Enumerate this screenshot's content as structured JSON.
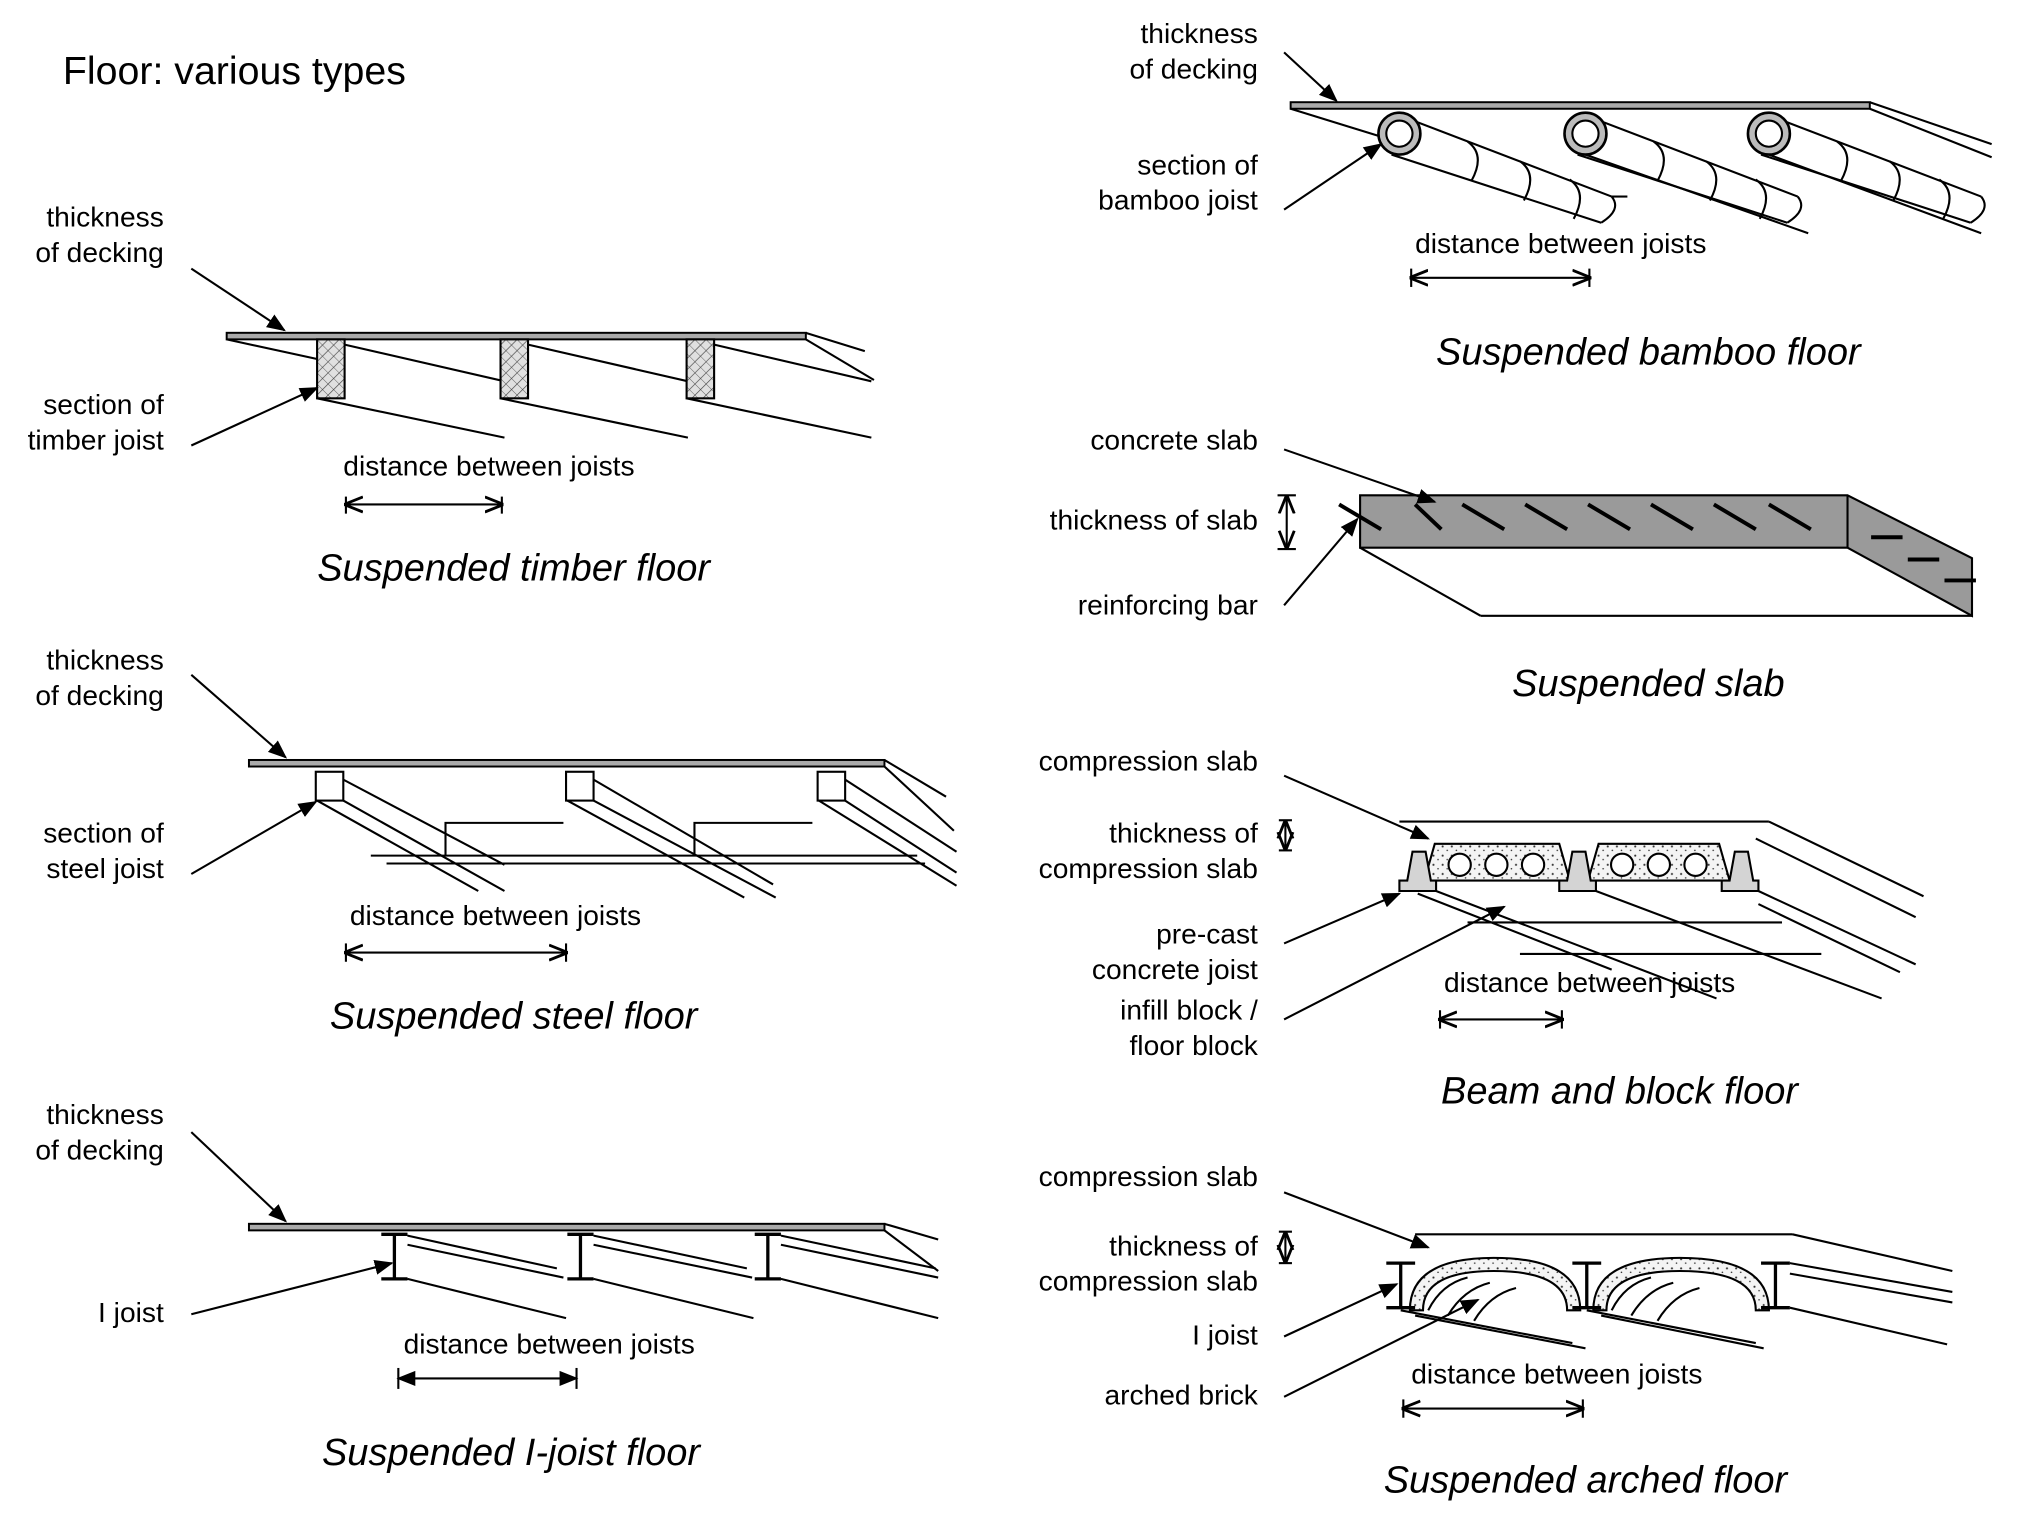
{
  "title": "Floor: various types",
  "diagrams": {
    "timber": {
      "caption": "Suspended timber floor",
      "labels": {
        "decking": "thickness\nof decking",
        "joist": "section of\ntimber joist",
        "distance": "distance between joists"
      }
    },
    "steel": {
      "caption": "Suspended steel floor",
      "labels": {
        "decking": "thickness\nof decking",
        "joist": "section of\nsteel joist",
        "distance": "distance between joists"
      }
    },
    "ijoist": {
      "caption": "Suspended I-joist floor",
      "labels": {
        "decking": "thickness\nof decking",
        "joist": "I joist",
        "distance": "distance between joists"
      }
    },
    "bamboo": {
      "caption": "Suspended bamboo floor",
      "labels": {
        "decking": "thickness\nof decking",
        "joist": "section of\nbamboo joist",
        "distance": "distance between joists"
      }
    },
    "slab": {
      "caption": "Suspended slab",
      "labels": {
        "slab": "concrete slab",
        "thickness": "thickness of slab",
        "bar": "reinforcing bar"
      }
    },
    "beamblock": {
      "caption": "Beam and block floor",
      "labels": {
        "compression": "compression slab",
        "thickness": "thickness of\ncompression slab",
        "joist": "pre-cast\nconcrete joist",
        "block": "infill block /\nfloor block",
        "distance": "distance between joists"
      }
    },
    "arched": {
      "caption": "Suspended arched floor",
      "labels": {
        "compression": "compression slab",
        "thickness": "thickness of\ncompression slab",
        "joist": "I joist",
        "brick": "arched brick",
        "distance": "distance between joists"
      }
    }
  }
}
